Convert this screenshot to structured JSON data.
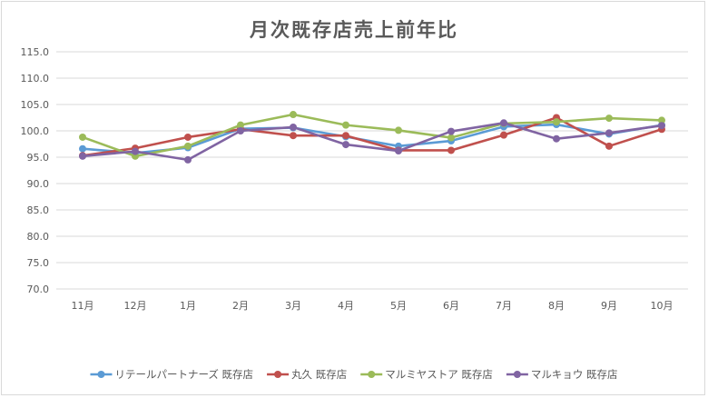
{
  "chart_data": {
    "type": "line",
    "title": "月次既存店売上前年比",
    "xlabel": "",
    "ylabel": "",
    "categories": [
      "11月",
      "12月",
      "1月",
      "2月",
      "3月",
      "4月",
      "5月",
      "6月",
      "7月",
      "8月",
      "9月",
      "10月"
    ],
    "ylim": [
      70.0,
      115.0
    ],
    "ytick_step": 5.0,
    "yticks": [
      "70.0",
      "75.0",
      "80.0",
      "85.0",
      "90.0",
      "95.0",
      "100.0",
      "105.0",
      "110.0",
      "115.0"
    ],
    "grid": true,
    "legend_position": "bottom",
    "series": [
      {
        "name": "リテールパートナーズ 既存店",
        "color": "#5b9bd5",
        "values": [
          96.6,
          95.8,
          96.8,
          100.4,
          100.6,
          98.9,
          97.1,
          98.1,
          100.8,
          101.2,
          99.4,
          101.1
        ]
      },
      {
        "name": "丸久 既存店",
        "color": "#c0504d",
        "values": [
          95.3,
          96.7,
          98.8,
          100.3,
          99.1,
          99.1,
          96.3,
          96.3,
          99.2,
          102.5,
          97.1,
          100.3
        ]
      },
      {
        "name": "マルミヤストア 既存店",
        "color": "#9bbb59",
        "values": [
          98.8,
          95.2,
          97.1,
          101.1,
          103.1,
          101.1,
          100.1,
          98.7,
          101.4,
          101.7,
          102.4,
          102.0
        ]
      },
      {
        "name": "マルキョウ 既存店",
        "color": "#8064a2",
        "values": [
          95.2,
          96.1,
          94.5,
          100.0,
          100.7,
          97.4,
          96.2,
          99.9,
          101.5,
          98.5,
          99.6,
          101.0
        ]
      }
    ]
  }
}
